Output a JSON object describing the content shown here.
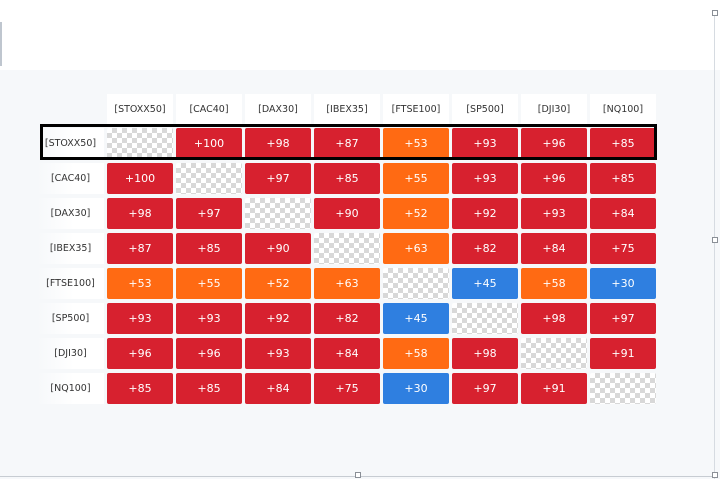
{
  "matrix": {
    "columns": [
      "[STOXX50]",
      "[CAC40]",
      "[DAX30]",
      "[IBEX35]",
      "[FTSE100]",
      "[SP500]",
      "[DJI30]",
      "[NQ100]"
    ],
    "rows": [
      {
        "label": "[STOXX50]",
        "values": [
          null,
          "+100",
          "+98",
          "+87",
          "+53",
          "+93",
          "+96",
          "+85"
        ]
      },
      {
        "label": "[CAC40]",
        "values": [
          "+100",
          null,
          "+97",
          "+85",
          "+55",
          "+93",
          "+96",
          "+85"
        ]
      },
      {
        "label": "[DAX30]",
        "values": [
          "+98",
          "+97",
          null,
          "+90",
          "+52",
          "+92",
          "+93",
          "+84"
        ]
      },
      {
        "label": "[IBEX35]",
        "values": [
          "+87",
          "+85",
          "+90",
          null,
          "+63",
          "+82",
          "+84",
          "+75"
        ]
      },
      {
        "label": "[FTSE100]",
        "values": [
          "+53",
          "+55",
          "+52",
          "+63",
          null,
          "+45",
          "+58",
          "+30"
        ]
      },
      {
        "label": "[SP500]",
        "values": [
          "+93",
          "+93",
          "+92",
          "+82",
          "+45",
          null,
          "+98",
          "+97"
        ]
      },
      {
        "label": "[DJI30]",
        "values": [
          "+96",
          "+96",
          "+93",
          "+84",
          "+58",
          "+98",
          null,
          "+91"
        ]
      },
      {
        "label": "[NQ100]",
        "values": [
          "+85",
          "+85",
          "+84",
          "+75",
          "+30",
          "+97",
          "+91",
          null
        ]
      }
    ]
  },
  "colors": {
    "strong": "#d7212f",
    "medium": "#ff6a13",
    "weak": "#2f7fe0"
  }
}
